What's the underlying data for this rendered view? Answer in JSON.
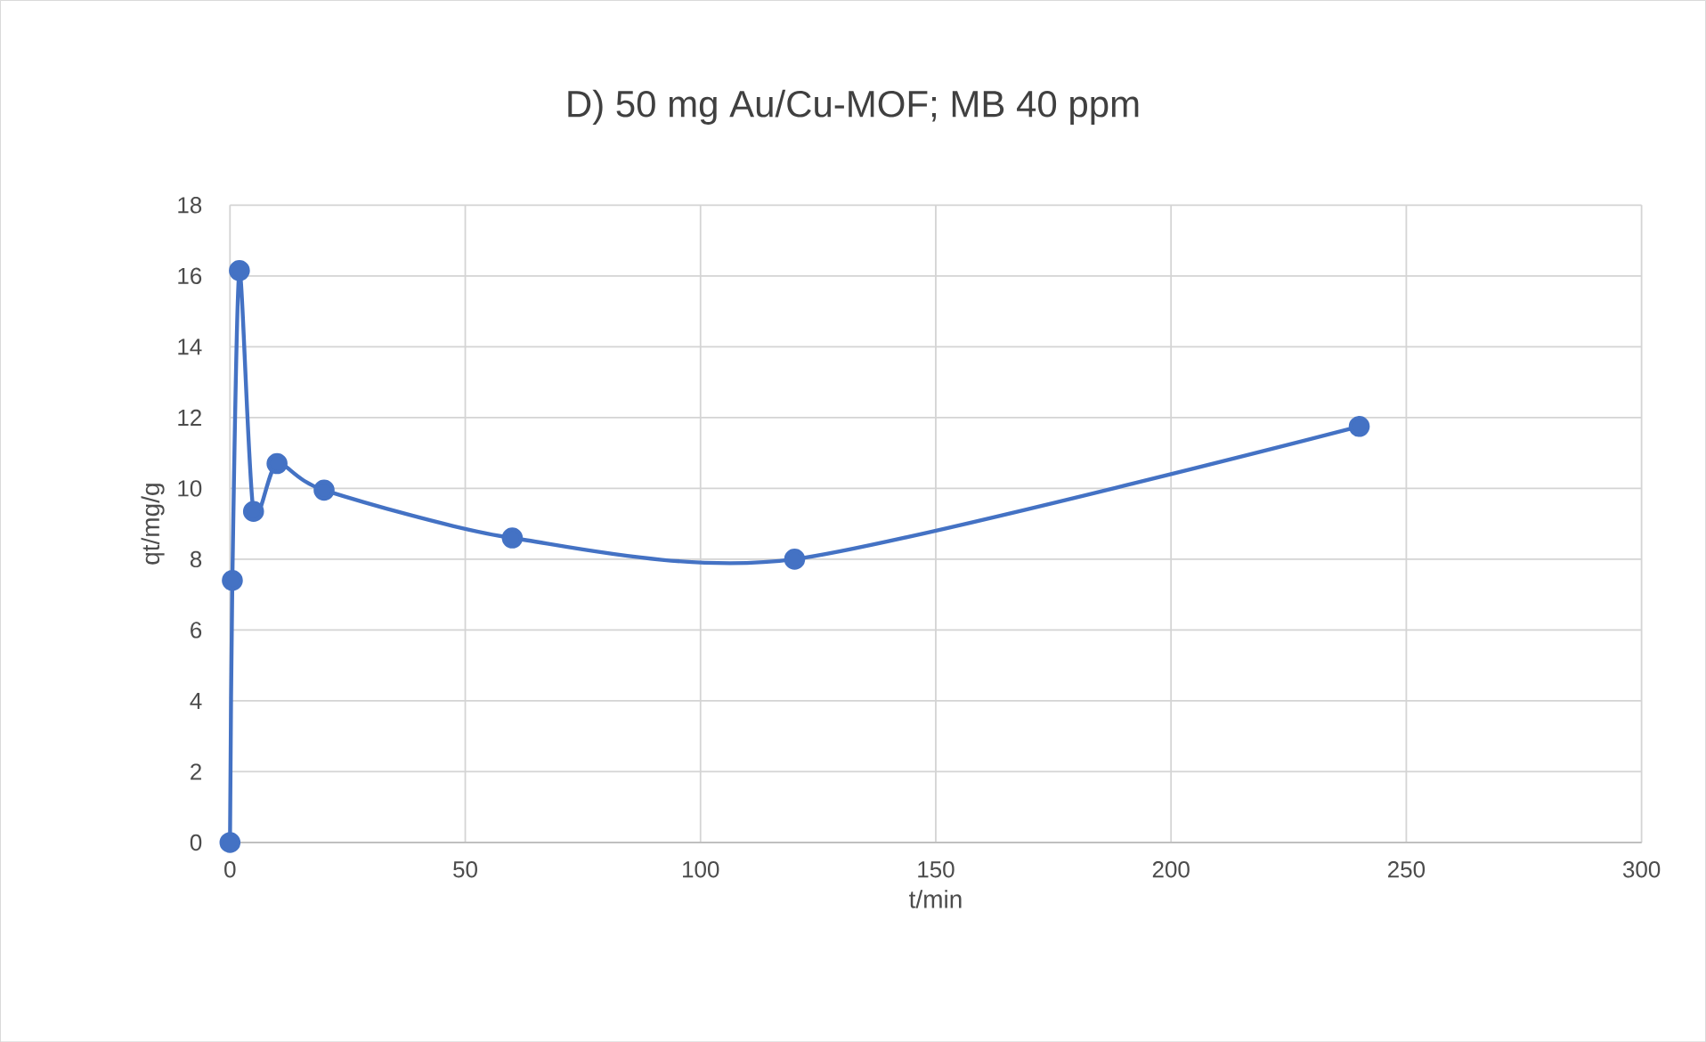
{
  "chart_data": {
    "type": "line",
    "title": "D) 50 mg Au/Cu-MOF; MB 40 ppm",
    "xlabel": "t/min",
    "ylabel": "qt/mg/g",
    "series": [
      {
        "color": "#4472c4",
        "x": [
          0,
          0.5,
          2,
          5,
          10,
          20,
          60,
          120,
          240
        ],
        "values": [
          0,
          7.4,
          16.15,
          9.35,
          10.7,
          9.95,
          8.6,
          8.0,
          11.75
        ]
      }
    ],
    "xlim": [
      0,
      300
    ],
    "xticks": [
      0,
      50,
      100,
      150,
      200,
      250,
      300
    ],
    "ylim": [
      0,
      18
    ],
    "yticks": [
      0,
      2,
      4,
      6,
      8,
      10,
      12,
      14,
      16,
      18
    ],
    "grid": true,
    "marker": "circle",
    "line_style": "solid"
  }
}
